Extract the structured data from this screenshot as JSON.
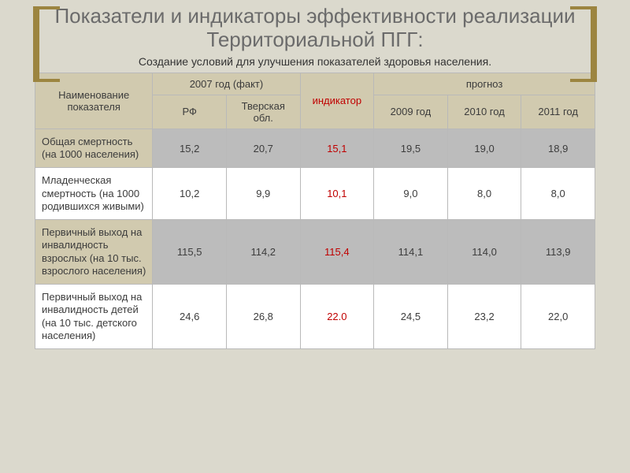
{
  "title": "Показатели и индикаторы эффективности реализации Территориальной ПГГ:",
  "subtitle": "Создание условий для улучшения показателей здоровья населения.",
  "colors": {
    "page_bg": "#dbd9cd",
    "bracket": "#9c8540",
    "header_bg": "#d1caaf",
    "gray_row_bg": "#bcbcbc",
    "border": "#b9b9b9",
    "indicator_text": "#c00000",
    "title_text": "#6b6b6b"
  },
  "typography": {
    "title_size_pt": 20,
    "subtitle_size_pt": 11,
    "cell_size_pt": 10,
    "font_family": "Arial"
  },
  "table": {
    "columns": {
      "name": "Наименование показателя",
      "fact_group": "2007 год (факт)",
      "fact_sub": {
        "rf": "РФ",
        "tver": "Тверская обл."
      },
      "indicator": "индикатор",
      "forecast_group": "прогноз",
      "forecast_sub": {
        "y2009": "2009 год",
        "y2010": "2010 год",
        "y2011": "2011 год"
      }
    },
    "rows": [
      {
        "name": "Общая смертность (на 1000 населения)",
        "rf": "15,2",
        "tver": "20,7",
        "indicator": "15,1",
        "y2009": "19,5",
        "y2010": "19,0",
        "y2011": "18,9",
        "shade": "gray"
      },
      {
        "name": "Младенческая смертность (на 1000 родившихся живыми)",
        "rf": "10,2",
        "tver": "9,9",
        "indicator": "10,1",
        "y2009": "9,0",
        "y2010": "8,0",
        "y2011": "8,0",
        "shade": "white"
      },
      {
        "name": "Первичный выход на инвалидность взрослых (на 10 тыс. взрослого населения)",
        "rf": "115,5",
        "tver": "114,2",
        "indicator": "115,4",
        "y2009": "114,1",
        "y2010": "114,0",
        "y2011": "113,9",
        "shade": "gray"
      },
      {
        "name": "Первичный выход на инвалидность детей (на 10 тыс. детского населения)",
        "rf": "24,6",
        "tver": "26,8",
        "indicator": "22.0",
        "y2009": "24,5",
        "y2010": "23,2",
        "y2011": "22,0",
        "shade": "white"
      }
    ]
  }
}
